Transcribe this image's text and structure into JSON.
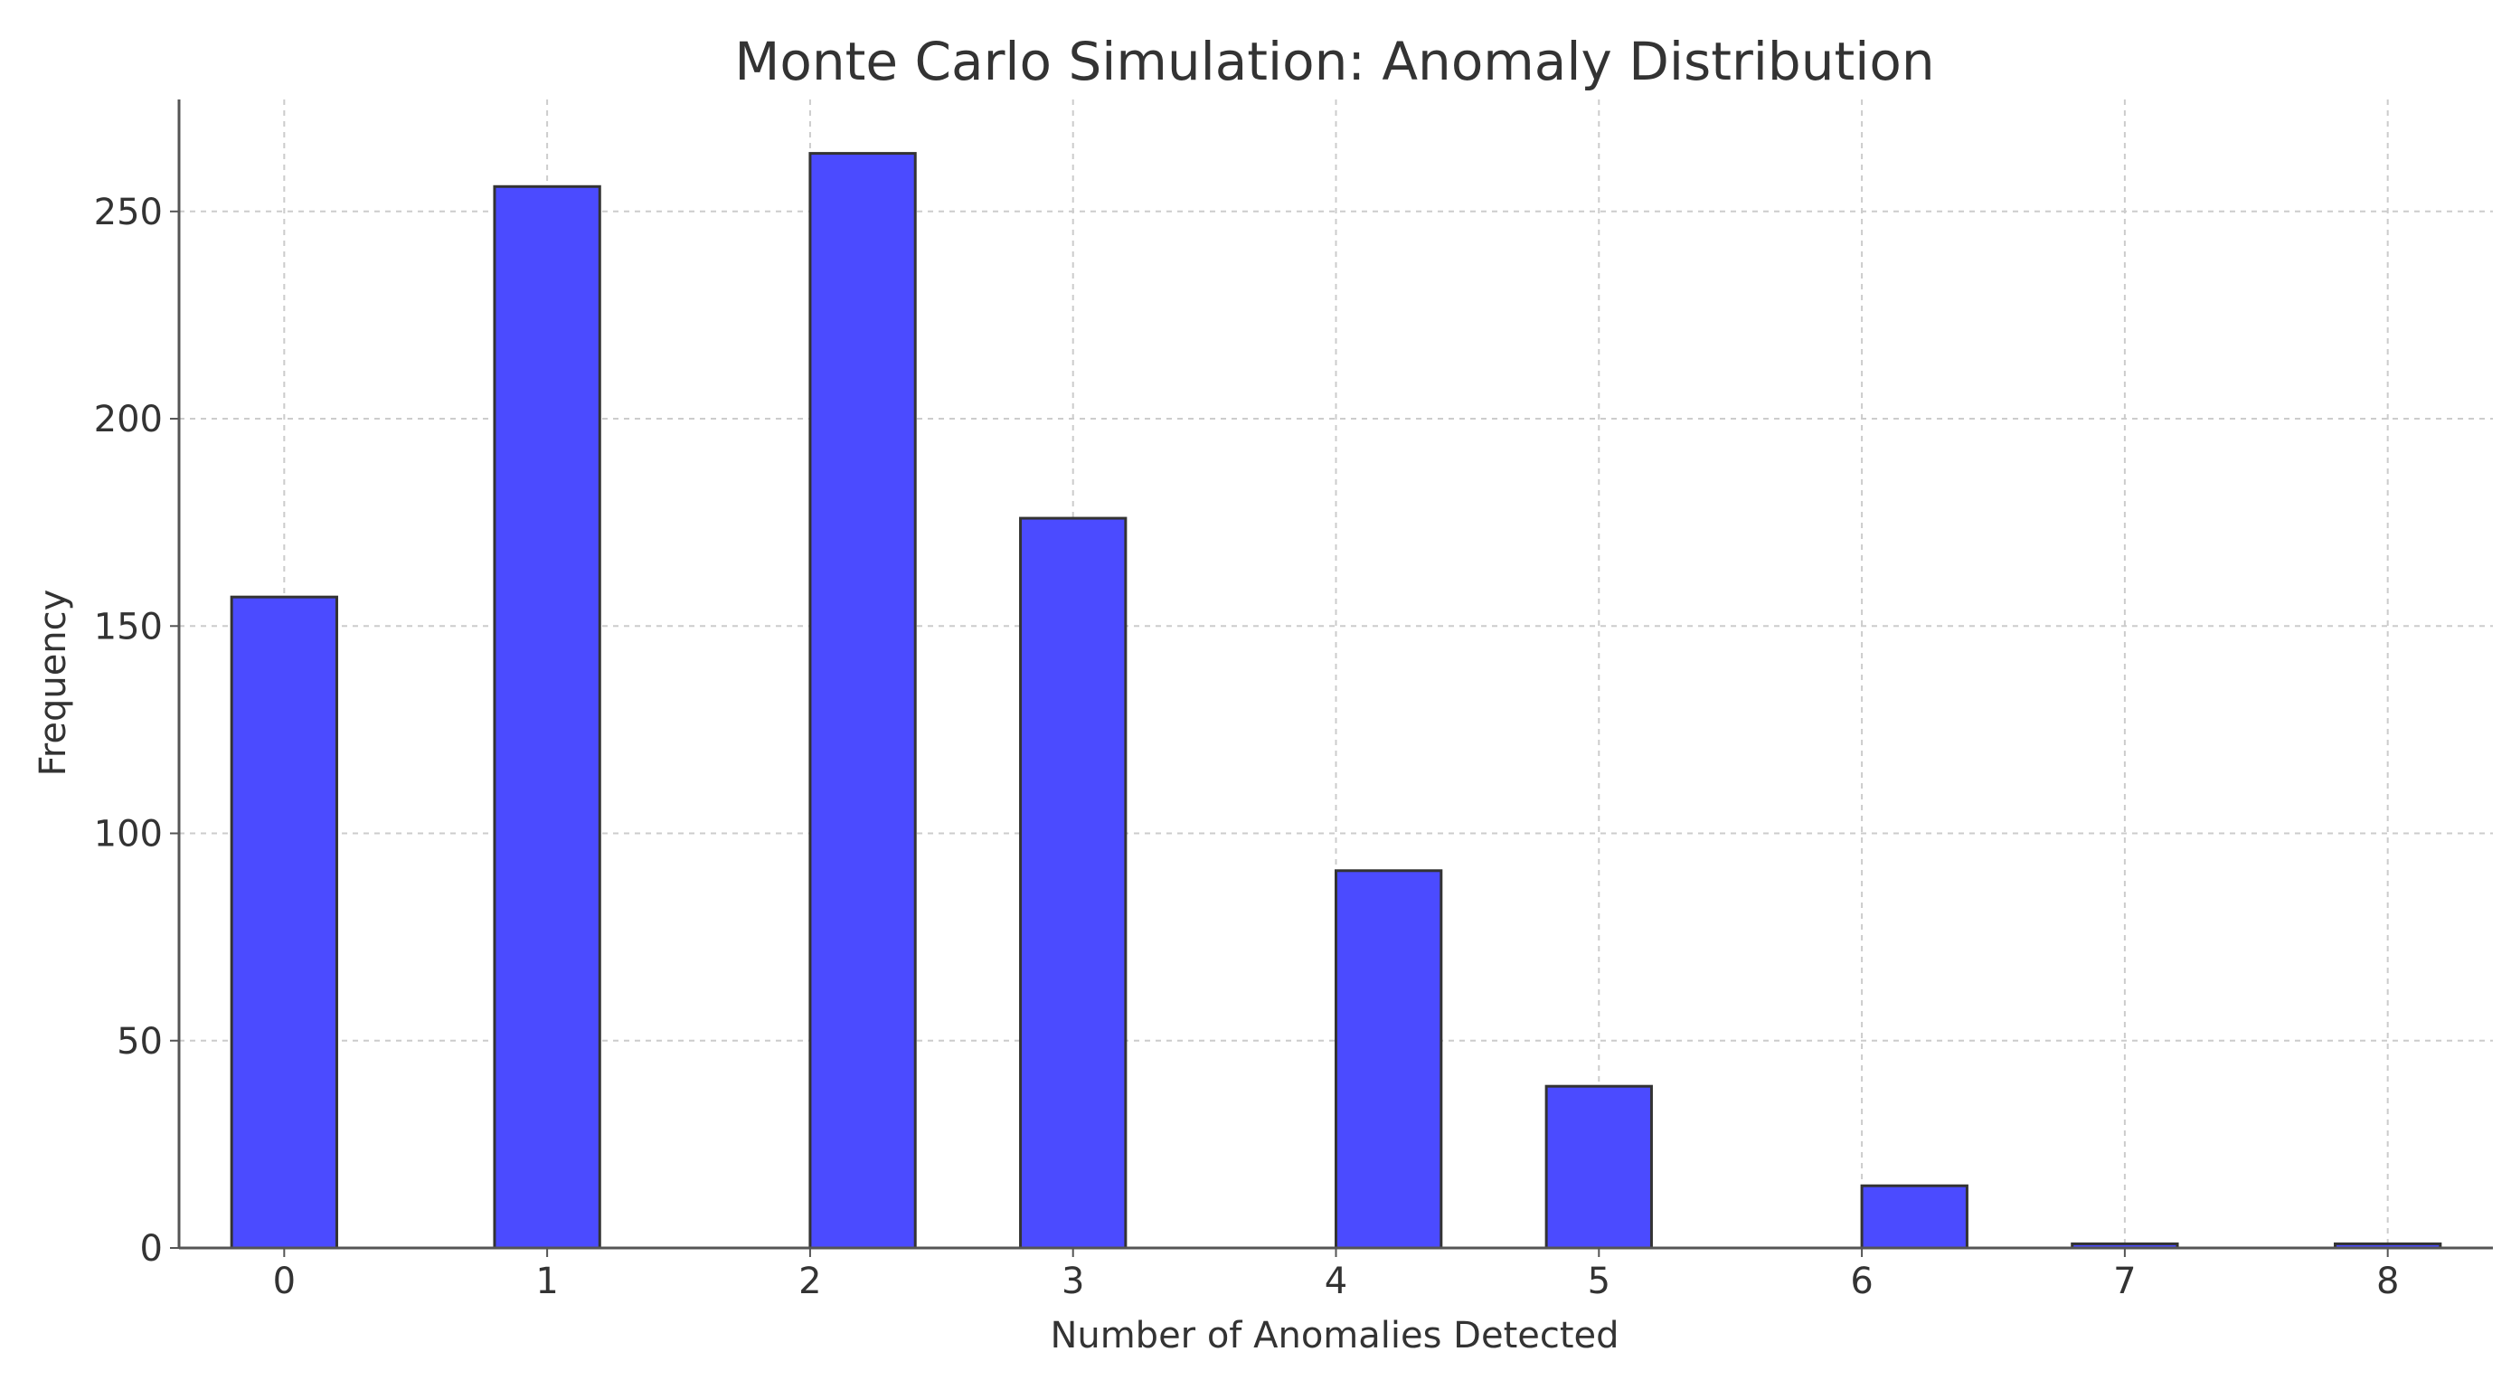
{
  "chart_data": {
    "type": "bar",
    "title": "Monte Carlo Simulation: Anomaly Distribution",
    "xlabel": "Number of Anomalies Detected",
    "ylabel": "Frequency",
    "x_ticks": [
      "0",
      "1",
      "2",
      "3",
      "4",
      "5",
      "6",
      "7",
      "8"
    ],
    "y_ticks": [
      "0",
      "50",
      "100",
      "150",
      "200",
      "250"
    ],
    "xlim": [
      -0.4,
      8.4
    ],
    "ylim": [
      0,
      277
    ],
    "bar_width": 0.4,
    "grid": true,
    "bar_color": "#4B4BFF",
    "edge_color": "#333333",
    "bars": [
      {
        "x": 0,
        "value": 157
      },
      {
        "x": 1,
        "value": 256
      },
      {
        "x": 2.2,
        "value": 264
      },
      {
        "x": 3,
        "value": 176
      },
      {
        "x": 4.2,
        "value": 91
      },
      {
        "x": 5,
        "value": 39
      },
      {
        "x": 6.2,
        "value": 15
      },
      {
        "x": 7,
        "value": 1
      },
      {
        "x": 8,
        "value": 1
      }
    ]
  }
}
